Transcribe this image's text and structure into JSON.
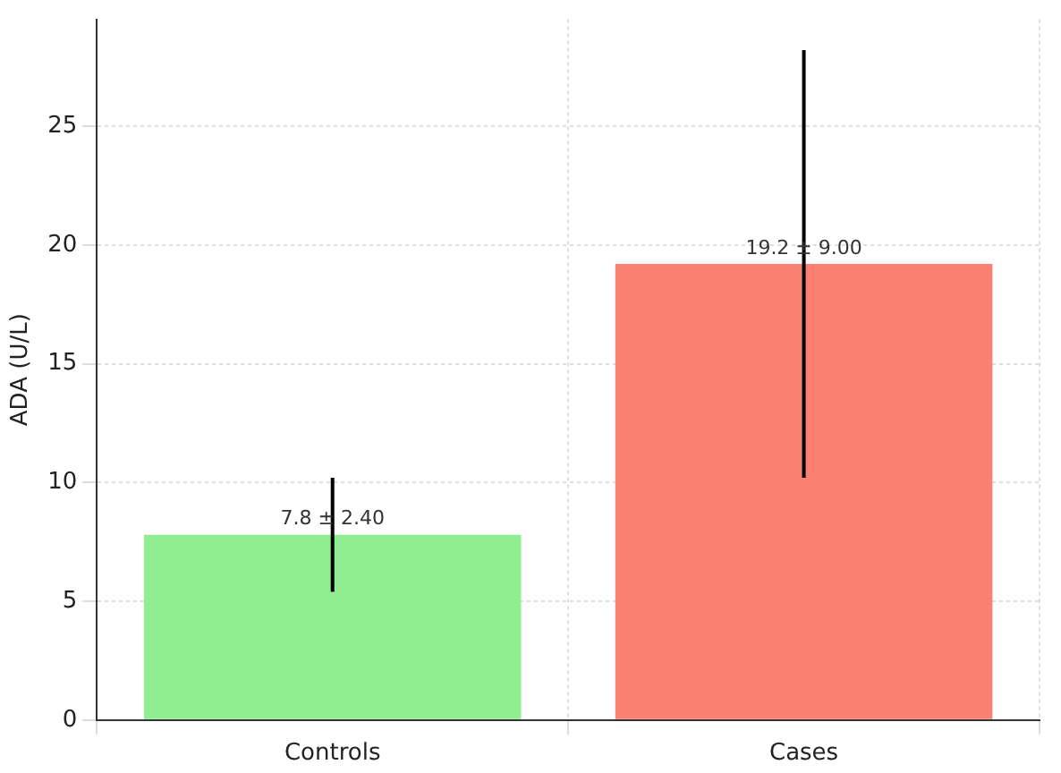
{
  "chart_data": {
    "type": "bar",
    "ylabel": "ADA (U/L)",
    "categories": [
      "Controls",
      "Cases"
    ],
    "values": [
      7.8,
      19.2
    ],
    "colors": [
      "#90ee90",
      "#fa8072"
    ],
    "errors": [
      2.4,
      9.0
    ],
    "value_labels": [
      "7.8 ± 2.40",
      "19.2 ± 9.00"
    ],
    "ylim": [
      0,
      29.5
    ],
    "yticks": [
      0,
      5,
      10,
      15,
      20,
      25
    ],
    "grid": true,
    "legend": false
  }
}
